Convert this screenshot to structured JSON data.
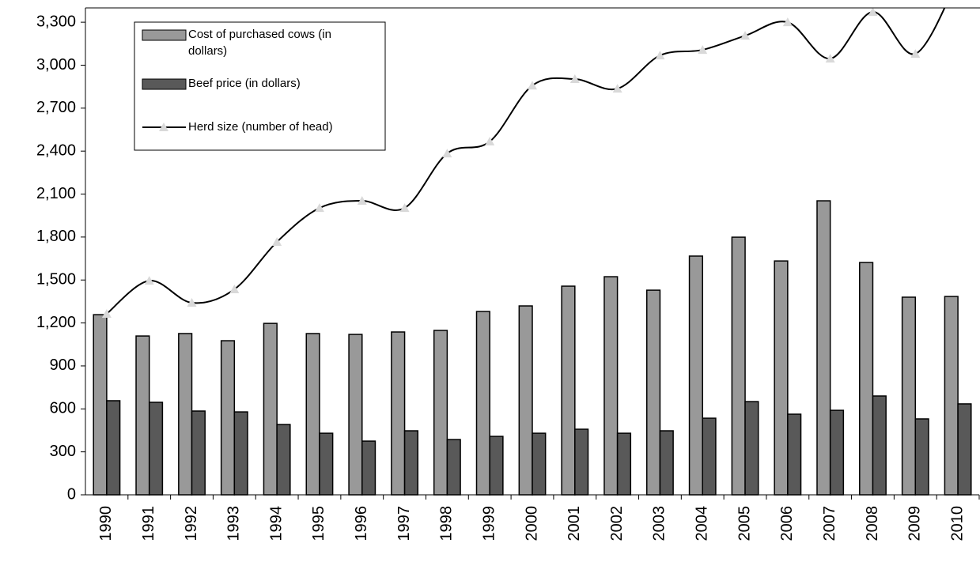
{
  "chart_data": {
    "type": "bar-line",
    "categories": [
      "1990",
      "1991",
      "1992",
      "1993",
      "1994",
      "1995",
      "1996",
      "1997",
      "1998",
      "1999",
      "2000",
      "2001",
      "2002",
      "2003",
      "2004",
      "2005",
      "2006",
      "2007",
      "2008",
      "2009",
      "2010"
    ],
    "series": [
      {
        "name": "Cost of purchased cows (in dollars)",
        "type": "bar",
        "color": "#999999",
        "values": [
          1258,
          1109,
          1126,
          1076,
          1197,
          1126,
          1120,
          1137,
          1148,
          1280,
          1319,
          1457,
          1523,
          1429,
          1667,
          1799,
          1633,
          2053,
          1622,
          1380,
          1385
        ]
      },
      {
        "name": "Beef price (in dollars)",
        "type": "bar",
        "color": "#595959",
        "values": [
          657,
          646,
          585,
          579,
          491,
          430,
          375,
          447,
          386,
          408,
          430,
          458,
          430,
          447,
          535,
          651,
          563,
          590,
          690,
          530,
          635
        ]
      },
      {
        "name": "Herd size (number of head)",
        "type": "line",
        "color": "#000000",
        "marker_color": "#d9d9d9",
        "values": [
          1264,
          1495,
          1341,
          1435,
          1766,
          2003,
          2053,
          2003,
          2384,
          2467,
          2858,
          2903,
          2836,
          3068,
          3107,
          3206,
          3300,
          3046,
          3372,
          3079,
          3600
        ]
      }
    ],
    "ylim": [
      0,
      3400
    ],
    "yticks": [
      0,
      300,
      600,
      900,
      {
        "value": 1200,
        "label": "1,200"
      },
      {
        "value": 1500,
        "label": "1,500"
      },
      {
        "value": 1800,
        "label": "1,800"
      },
      {
        "value": 2100,
        "label": "2,100"
      },
      {
        "value": 2400,
        "label": "2,400"
      },
      {
        "value": 2700,
        "label": "2,700"
      },
      {
        "value": 3000,
        "label": "3,000"
      },
      {
        "value": 3300,
        "label": "3,300"
      }
    ],
    "grid": false,
    "legend": "upper left"
  }
}
